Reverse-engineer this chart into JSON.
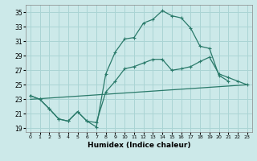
{
  "xlabel": "Humidex (Indice chaleur)",
  "ylabel": "",
  "xlim": [
    -0.5,
    23.5
  ],
  "ylim": [
    18.5,
    36
  ],
  "yticks": [
    19,
    21,
    23,
    25,
    27,
    29,
    31,
    33,
    35
  ],
  "xticks": [
    0,
    1,
    2,
    3,
    4,
    5,
    6,
    7,
    8,
    9,
    10,
    11,
    12,
    13,
    14,
    15,
    16,
    17,
    18,
    19,
    20,
    21,
    22,
    23
  ],
  "bg_color": "#cce9e9",
  "grid_color": "#aad4d4",
  "line_color": "#2a7a6a",
  "line1_x": [
    0,
    1,
    2,
    3,
    4,
    5,
    6,
    7,
    8,
    9,
    10,
    11,
    12,
    13,
    14,
    15,
    16,
    17,
    18,
    19,
    20,
    21
  ],
  "line1_y": [
    23.5,
    23.0,
    21.7,
    20.3,
    20.0,
    21.3,
    20.0,
    19.2,
    26.5,
    29.5,
    31.3,
    31.5,
    33.5,
    34.0,
    35.2,
    34.5,
    34.2,
    32.8,
    30.3,
    30.0,
    26.3,
    25.5
  ],
  "line2_x": [
    0,
    1,
    2,
    3,
    4,
    5,
    6,
    7,
    8,
    9,
    10,
    11,
    12,
    13,
    14,
    15,
    16,
    17,
    18,
    19,
    20,
    21,
    22,
    23
  ],
  "line2_y": [
    23.5,
    23.0,
    21.7,
    20.3,
    20.0,
    21.3,
    20.0,
    19.8,
    24.0,
    25.5,
    27.2,
    27.5,
    28.0,
    28.5,
    28.5,
    27.0,
    27.2,
    27.5,
    28.2,
    28.8,
    26.5,
    26.0,
    25.5,
    25.0
  ],
  "line3_x": [
    0,
    23
  ],
  "line3_y": [
    23.0,
    25.0
  ]
}
